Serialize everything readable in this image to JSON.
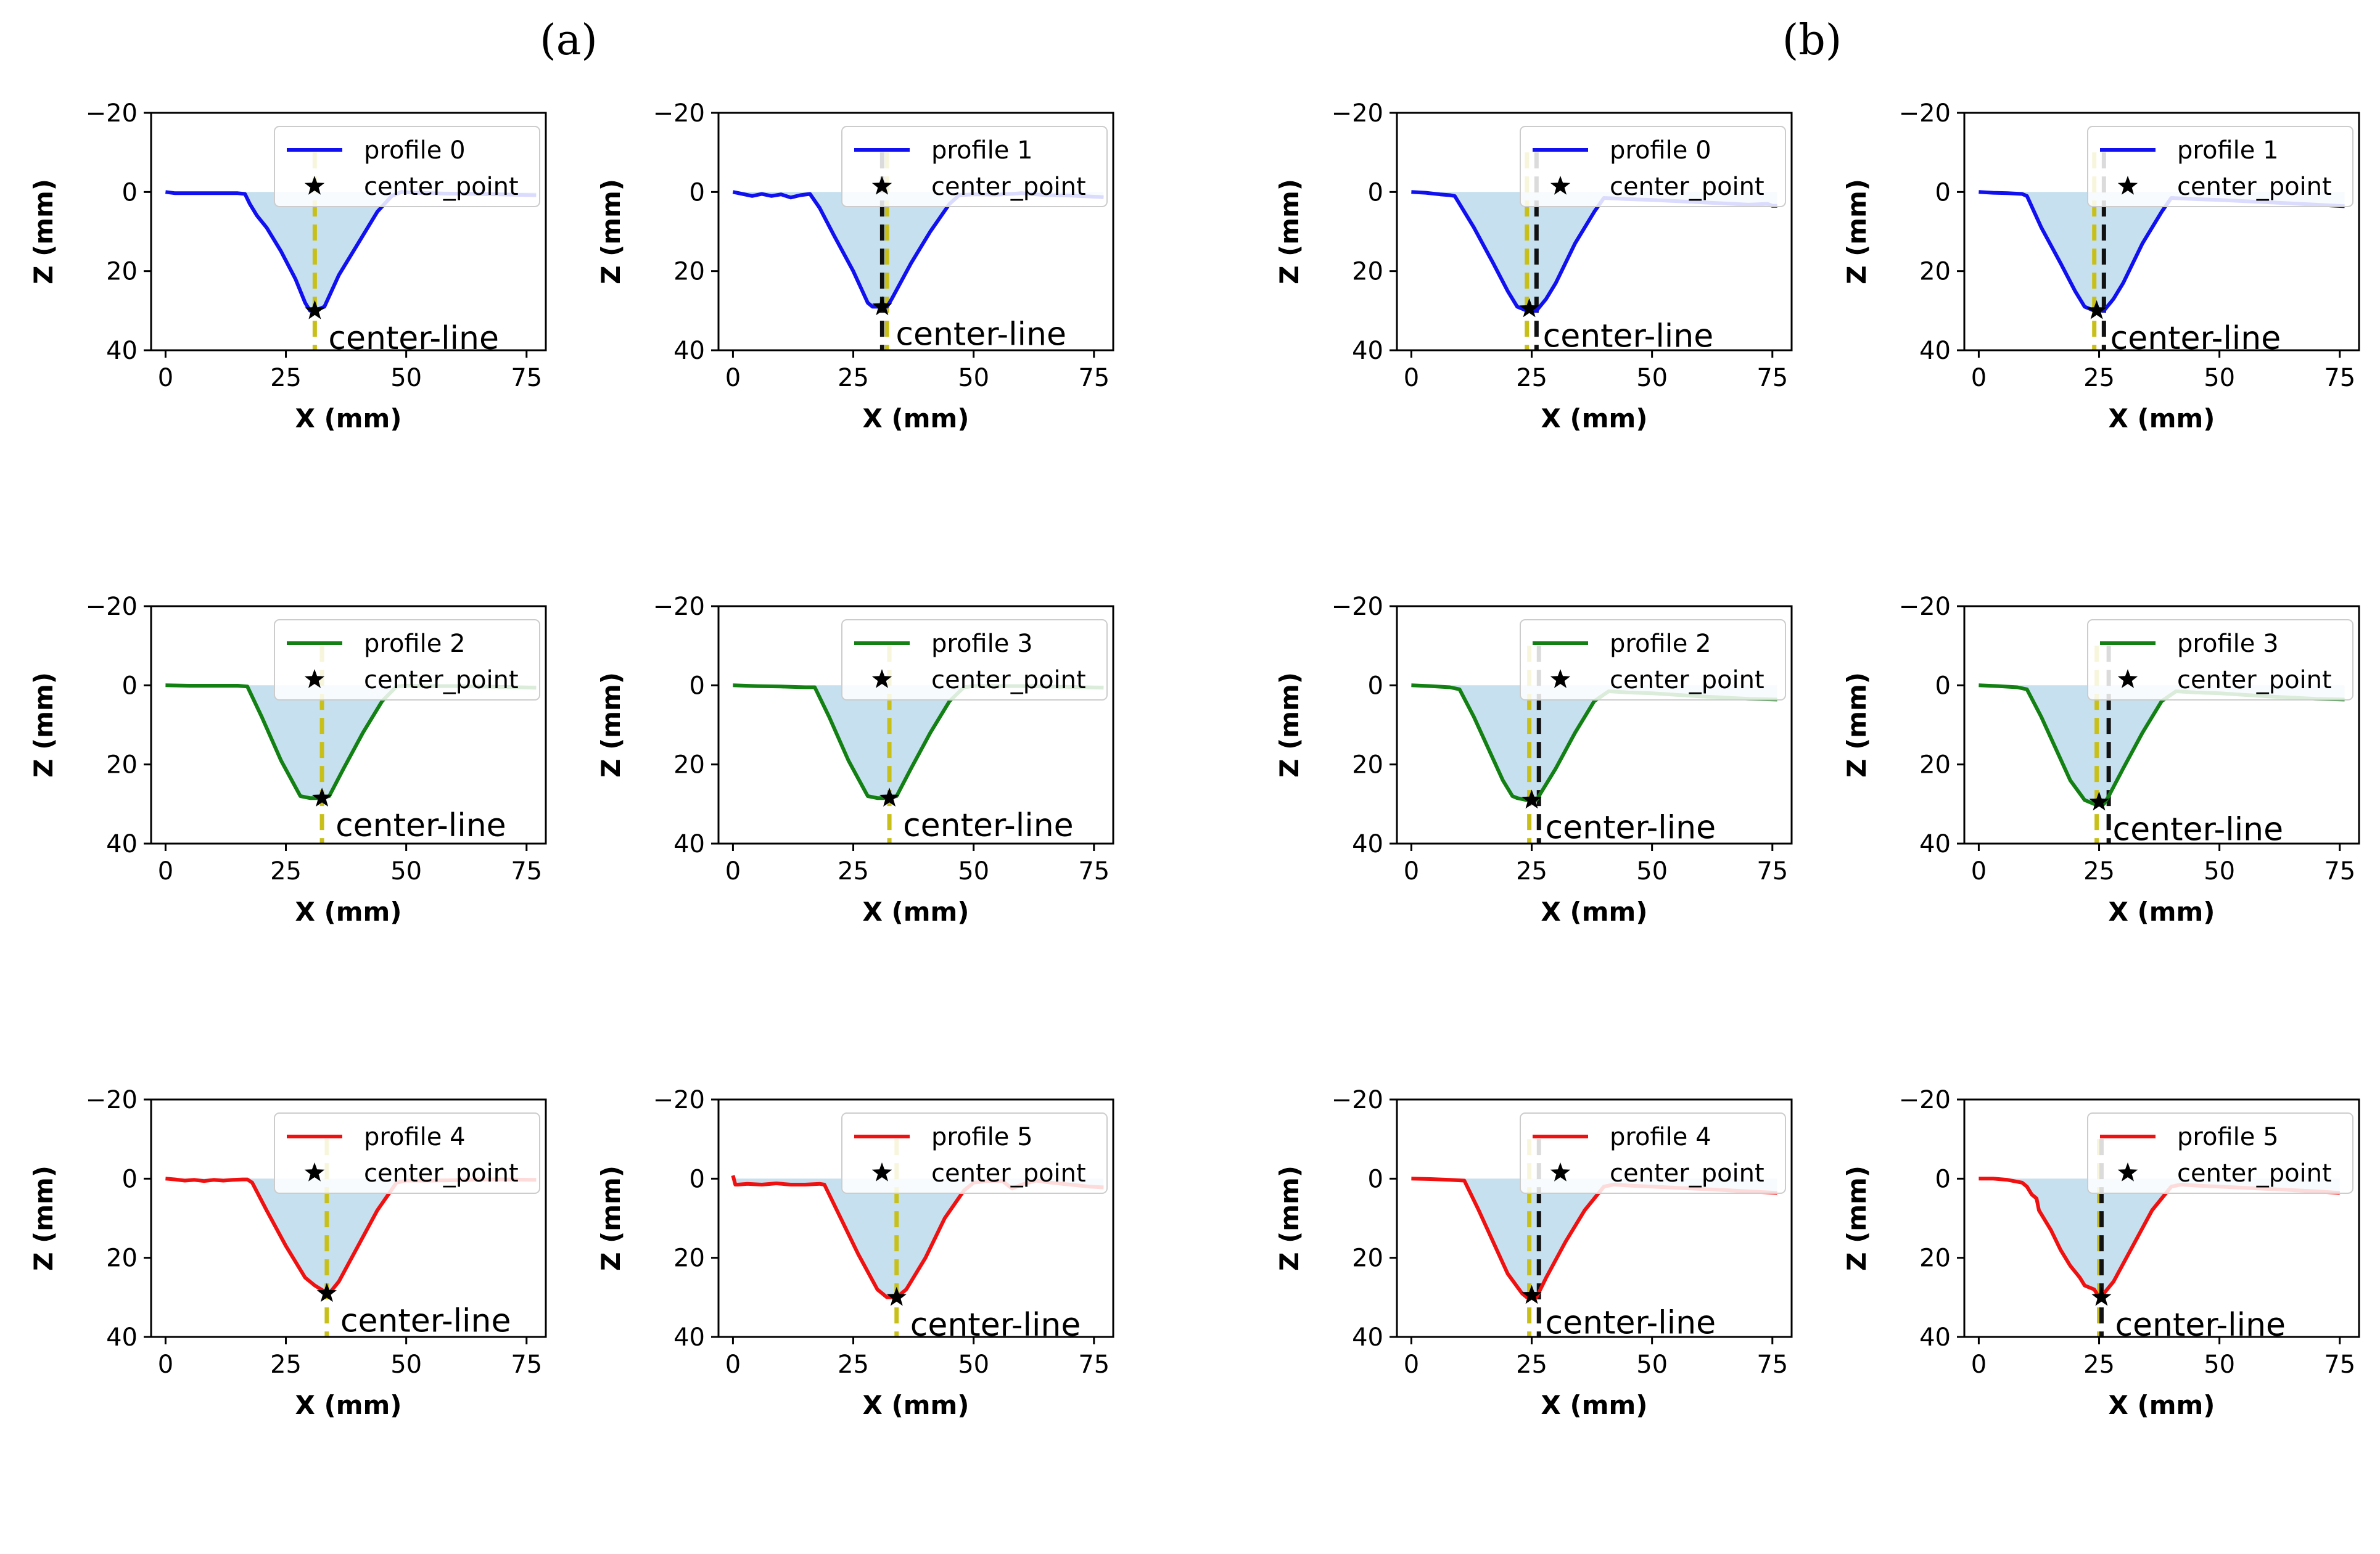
{
  "figure": {
    "panel_labels": [
      "(a)",
      "(b)"
    ]
  },
  "colors": {
    "profile0": "#1010f0",
    "profile1": "#1010f0",
    "profile2": "#128012",
    "profile3": "#128012",
    "profile4": "#f01010",
    "profile5": "#f01010",
    "fill": "#c6e0ef",
    "center_yellow": "#c8c018",
    "center_black": "#111111"
  },
  "chart_data": [
    {
      "type": "line",
      "group": "a",
      "title": "",
      "series_name": "profile 0",
      "legend": [
        "profile 0",
        "center_point"
      ],
      "annotation": "center-line",
      "xlabel": "X (mm)",
      "ylabel": "Z (mm)",
      "xlim": [
        -3,
        79
      ],
      "ylim": [
        40,
        -20
      ],
      "xticks": [
        0,
        25,
        50,
        75
      ],
      "yticks": [
        -20,
        0,
        20,
        40
      ],
      "color_key": "profile0",
      "x": [
        0,
        2,
        5,
        10,
        15,
        16.5,
        17.5,
        19,
        21,
        24,
        27,
        29,
        30,
        31,
        33,
        36,
        40,
        44,
        47,
        49,
        52,
        58,
        65,
        72,
        77
      ],
      "z": [
        0,
        0.3,
        0.3,
        0.3,
        0.3,
        0.5,
        3,
        6,
        9,
        15,
        22,
        28,
        30,
        30,
        29,
        21,
        13,
        5,
        1,
        0,
        0.2,
        0.4,
        0.5,
        0.7,
        0.8
      ],
      "center_point": [
        31,
        30
      ],
      "center_line_x": [
        31
      ],
      "center_line_kind": [
        "yellow"
      ]
    },
    {
      "type": "line",
      "group": "a",
      "title": "",
      "series_name": "profile 1",
      "legend": [
        "profile 1",
        "center_point"
      ],
      "annotation": "center-line",
      "xlabel": "X (mm)",
      "ylabel": "Z (mm)",
      "xlim": [
        -3,
        79
      ],
      "ylim": [
        40,
        -20
      ],
      "xticks": [
        0,
        25,
        50,
        75
      ],
      "yticks": [
        -20,
        0,
        20,
        40
      ],
      "color_key": "profile1",
      "x": [
        0,
        2,
        4,
        6,
        8,
        10,
        12,
        14,
        16,
        18,
        21,
        25,
        28,
        29,
        30,
        32,
        33,
        37,
        41,
        45,
        47,
        50,
        55,
        60,
        65,
        70,
        77
      ],
      "z": [
        0,
        0.5,
        1,
        0.5,
        1,
        0.6,
        1.4,
        0.8,
        0.5,
        4,
        11,
        20,
        28,
        29,
        29,
        29,
        27,
        18,
        10,
        3,
        0.8,
        0.6,
        0.7,
        0.3,
        0.8,
        0.9,
        1.3
      ],
      "center_point": [
        31,
        29
      ],
      "center_line_x": [
        31,
        32
      ],
      "center_line_kind": [
        "black",
        "yellow"
      ]
    },
    {
      "type": "line",
      "group": "b",
      "title": "",
      "series_name": "profile 0",
      "legend": [
        "profile 0",
        "center_point"
      ],
      "annotation": "center-line",
      "xlabel": "X (mm)",
      "ylabel": "Z (mm)",
      "xlim": [
        -3,
        79
      ],
      "ylim": [
        40,
        -20
      ],
      "xticks": [
        0,
        25,
        50,
        75
      ],
      "yticks": [
        -20,
        0,
        20,
        40
      ],
      "color_key": "profile0",
      "x": [
        0,
        3,
        6,
        8,
        9,
        10,
        13,
        17,
        20,
        22,
        24,
        26,
        28,
        30,
        34,
        38,
        40,
        45,
        50,
        55,
        60,
        65,
        70,
        74,
        75,
        76
      ],
      "z": [
        0,
        0.2,
        0.6,
        0.8,
        1,
        3,
        9,
        18,
        25,
        29,
        30,
        30,
        27,
        23,
        13,
        5,
        1.5,
        1.8,
        2,
        2.3,
        2.6,
        2.9,
        3.2,
        3,
        3.5,
        3.5
      ],
      "center_point": [
        24.5,
        29.5
      ],
      "center_line_x": [
        24,
        26
      ],
      "center_line_kind": [
        "yellow",
        "black"
      ]
    },
    {
      "type": "line",
      "group": "b",
      "title": "",
      "series_name": "profile 1",
      "legend": [
        "profile 1",
        "center_point"
      ],
      "annotation": "center-line",
      "xlabel": "X (mm)",
      "ylabel": "Z (mm)",
      "xlim": [
        -3,
        79
      ],
      "ylim": [
        40,
        -20
      ],
      "xticks": [
        0,
        25,
        50,
        75
      ],
      "yticks": [
        -20,
        0,
        20,
        40
      ],
      "color_key": "profile1",
      "x": [
        0,
        3,
        6,
        9,
        10,
        13,
        17,
        20,
        22,
        24,
        26,
        28,
        30,
        34,
        38,
        40,
        45,
        50,
        55,
        60,
        65,
        70,
        76
      ],
      "z": [
        0,
        0.2,
        0.3,
        0.5,
        1,
        9,
        18,
        25,
        29,
        30,
        30,
        27,
        23,
        13,
        5,
        1.5,
        1.8,
        2,
        2.3,
        2.6,
        2.9,
        3.2,
        3.6
      ],
      "center_point": [
        24.5,
        30
      ],
      "center_line_x": [
        24,
        26
      ],
      "center_line_kind": [
        "yellow",
        "black"
      ]
    },
    {
      "type": "line",
      "group": "a",
      "title": "",
      "series_name": "profile 2",
      "legend": [
        "profile 2",
        "center_point"
      ],
      "annotation": "center-line",
      "xlabel": "X (mm)",
      "ylabel": "Z (mm)",
      "xlim": [
        -3,
        79
      ],
      "ylim": [
        40,
        -20
      ],
      "xticks": [
        0,
        25,
        50,
        75
      ],
      "yticks": [
        -20,
        0,
        20,
        40
      ],
      "color_key": "profile2",
      "x": [
        0,
        5,
        10,
        15,
        17,
        20,
        24,
        28,
        30,
        32,
        34,
        37,
        41,
        45,
        48,
        50,
        55,
        60,
        65,
        70,
        77
      ],
      "z": [
        0,
        0.1,
        0.1,
        0.1,
        0.3,
        8,
        19,
        28,
        28.5,
        28.5,
        28,
        21,
        12,
        4,
        0.3,
        0.1,
        0.2,
        0.2,
        0.3,
        0.4,
        0.6
      ],
      "center_point": [
        32.5,
        28.5
      ],
      "center_line_x": [
        32.5
      ],
      "center_line_kind": [
        "yellow"
      ]
    },
    {
      "type": "line",
      "group": "a",
      "title": "",
      "series_name": "profile 3",
      "legend": [
        "profile 3",
        "center_point"
      ],
      "annotation": "center-line",
      "xlabel": "X (mm)",
      "ylabel": "Z (mm)",
      "xlim": [
        -3,
        79
      ],
      "ylim": [
        40,
        -20
      ],
      "xticks": [
        0,
        25,
        50,
        75
      ],
      "yticks": [
        -20,
        0,
        20,
        40
      ],
      "color_key": "profile3",
      "x": [
        0,
        5,
        10,
        15,
        17,
        20,
        24,
        28,
        30,
        32,
        34,
        37,
        41,
        45,
        48,
        50,
        55,
        60,
        65,
        70,
        77
      ],
      "z": [
        0,
        0.2,
        0.3,
        0.5,
        0.5,
        8,
        19,
        28,
        28.5,
        28.5,
        28,
        21,
        12,
        4,
        0.5,
        0.2,
        0.2,
        0.2,
        0.3,
        0.4,
        0.6
      ],
      "center_point": [
        32.5,
        28.5
      ],
      "center_line_x": [
        32.5
      ],
      "center_line_kind": [
        "yellow"
      ]
    },
    {
      "type": "line",
      "group": "b",
      "title": "",
      "series_name": "profile 2",
      "legend": [
        "profile 2",
        "center_point"
      ],
      "annotation": "center-line",
      "xlabel": "X (mm)",
      "ylabel": "Z (mm)",
      "xlim": [
        -3,
        79
      ],
      "ylim": [
        40,
        -20
      ],
      "xticks": [
        0,
        25,
        50,
        75
      ],
      "yticks": [
        -20,
        0,
        20,
        40
      ],
      "color_key": "profile2",
      "x": [
        0,
        4,
        8,
        10,
        13,
        16,
        19,
        21,
        22,
        24,
        26,
        27,
        30,
        34,
        38,
        41,
        45,
        50,
        55,
        60,
        65,
        70,
        76
      ],
      "z": [
        0,
        0.2,
        0.5,
        1,
        8,
        16,
        24,
        28,
        28.5,
        29,
        29,
        27,
        21,
        12,
        4,
        1.5,
        1.8,
        2,
        2.4,
        2.8,
        3.1,
        3.4,
        3.6
      ],
      "center_point": [
        25,
        29
      ],
      "center_line_x": [
        24.5,
        26.5
      ],
      "center_line_kind": [
        "yellow",
        "black"
      ]
    },
    {
      "type": "line",
      "group": "b",
      "title": "",
      "series_name": "profile 3",
      "legend": [
        "profile 3",
        "center_point"
      ],
      "annotation": "center-line",
      "xlabel": "X (mm)",
      "ylabel": "Z (mm)",
      "xlim": [
        -3,
        79
      ],
      "ylim": [
        40,
        -20
      ],
      "xticks": [
        0,
        25,
        50,
        75
      ],
      "yticks": [
        -20,
        0,
        20,
        40
      ],
      "color_key": "profile3",
      "x": [
        0,
        4,
        8,
        10,
        13,
        16,
        19,
        22,
        24,
        26,
        27,
        30,
        34,
        38,
        41,
        45,
        50,
        55,
        60,
        65,
        70,
        76
      ],
      "z": [
        0,
        0.2,
        0.5,
        1,
        8,
        16,
        24,
        29,
        30,
        30,
        28,
        21,
        12,
        4,
        1.5,
        1.8,
        2,
        2.4,
        2.8,
        3.1,
        3.4,
        3.6
      ],
      "center_point": [
        25,
        29.5
      ],
      "center_line_x": [
        24.5,
        27
      ],
      "center_line_kind": [
        "yellow",
        "black"
      ]
    },
    {
      "type": "line",
      "group": "a",
      "title": "",
      "series_name": "profile 4",
      "legend": [
        "profile 4",
        "center_point"
      ],
      "annotation": "center-line",
      "xlabel": "X (mm)",
      "ylabel": "Z (mm)",
      "xlim": [
        -3,
        79
      ],
      "ylim": [
        40,
        -20
      ],
      "xticks": [
        0,
        25,
        50,
        75
      ],
      "yticks": [
        -20,
        0,
        20,
        40
      ],
      "color_key": "profile4",
      "x": [
        0,
        2,
        4,
        6,
        8,
        10,
        12,
        14,
        16,
        17,
        18,
        21,
        25,
        29,
        31,
        33,
        34,
        36,
        40,
        44,
        48,
        50,
        55,
        60,
        65,
        70,
        77
      ],
      "z": [
        0,
        0.2,
        0.5,
        0.3,
        0.6,
        0.3,
        0.5,
        0.3,
        0.2,
        0.2,
        1,
        8,
        17,
        25,
        27,
        28.5,
        29,
        26,
        17,
        8,
        1,
        0.5,
        0.5,
        0.4,
        0.2,
        0.2,
        0.3
      ],
      "center_point": [
        33.5,
        29
      ],
      "center_line_x": [
        33.5
      ],
      "center_line_kind": [
        "yellow"
      ]
    },
    {
      "type": "line",
      "group": "a",
      "title": "",
      "series_name": "profile 5",
      "legend": [
        "profile 5",
        "center_point"
      ],
      "annotation": "center-line",
      "xlabel": "X (mm)",
      "ylabel": "Z (mm)",
      "xlim": [
        -3,
        79
      ],
      "ylim": [
        40,
        -20
      ],
      "xticks": [
        0,
        25,
        50,
        75
      ],
      "yticks": [
        -20,
        0,
        20,
        40
      ],
      "color_key": "profile5",
      "x": [
        0,
        0.5,
        1,
        3,
        6,
        9,
        12,
        15,
        18,
        19,
        22,
        26,
        30,
        32,
        34,
        36,
        40,
        44,
        48,
        50,
        53,
        56,
        58,
        60,
        63,
        66,
        70,
        74,
        77
      ],
      "z": [
        -0.8,
        1.5,
        1.5,
        1.3,
        1.5,
        1.2,
        1.5,
        1.5,
        1.3,
        1.5,
        9,
        19,
        28,
        30,
        30,
        28,
        20,
        10,
        3,
        1,
        0.6,
        0.6,
        2.5,
        1.5,
        0.5,
        1,
        1.5,
        2,
        2.2
      ],
      "center_point": [
        34,
        30
      ],
      "center_line_x": [
        34
      ],
      "center_line_kind": [
        "yellow"
      ]
    },
    {
      "type": "line",
      "group": "b",
      "title": "",
      "series_name": "profile 4",
      "legend": [
        "profile 4",
        "center_point"
      ],
      "annotation": "center-line",
      "xlabel": "X (mm)",
      "ylabel": "Z (mm)",
      "xlim": [
        -3,
        79
      ],
      "ylim": [
        40,
        -20
      ],
      "xticks": [
        0,
        25,
        50,
        75
      ],
      "yticks": [
        -20,
        0,
        20,
        40
      ],
      "color_key": "profile4",
      "x": [
        0,
        4,
        8,
        11,
        14,
        17,
        20,
        23,
        24,
        25,
        26,
        28,
        32,
        36,
        40,
        42,
        46,
        50,
        55,
        60,
        65,
        70,
        76
      ],
      "z": [
        0,
        0.1,
        0.3,
        0.5,
        8,
        16,
        24,
        29,
        30,
        30,
        30,
        25,
        16,
        8,
        2,
        1.5,
        1.8,
        2,
        2.3,
        2.6,
        2.9,
        3.2,
        3.6
      ],
      "center_point": [
        25,
        29.5
      ],
      "center_line_x": [
        24.5,
        26.5
      ],
      "center_line_kind": [
        "yellow",
        "black"
      ]
    },
    {
      "type": "line",
      "group": "b",
      "title": "",
      "series_name": "profile 5",
      "legend": [
        "profile 5",
        "center_point"
      ],
      "annotation": "center-line",
      "xlabel": "X (mm)",
      "ylabel": "Z (mm)",
      "xlim": [
        -3,
        79
      ],
      "ylim": [
        40,
        -20
      ],
      "xticks": [
        0,
        25,
        50,
        75
      ],
      "yticks": [
        -20,
        0,
        20,
        40
      ],
      "color_key": "profile5",
      "x": [
        0,
        3,
        6,
        9,
        10,
        11,
        12,
        12.5,
        13,
        15,
        17,
        19,
        21,
        22,
        24,
        25,
        26,
        28,
        32,
        36,
        40,
        42,
        46,
        50,
        55,
        60,
        65,
        70,
        75
      ],
      "z": [
        0,
        0,
        0.3,
        1,
        2,
        4,
        5,
        8,
        9,
        13,
        18,
        22,
        25,
        27,
        28,
        30,
        29,
        26,
        17,
        8,
        2,
        1.5,
        1.8,
        2,
        2.3,
        2.6,
        2.9,
        3.2,
        3.6
      ],
      "center_point": [
        25.5,
        30
      ],
      "center_line_x": [
        25,
        25.5
      ],
      "center_line_kind": [
        "yellow",
        "black"
      ]
    }
  ]
}
